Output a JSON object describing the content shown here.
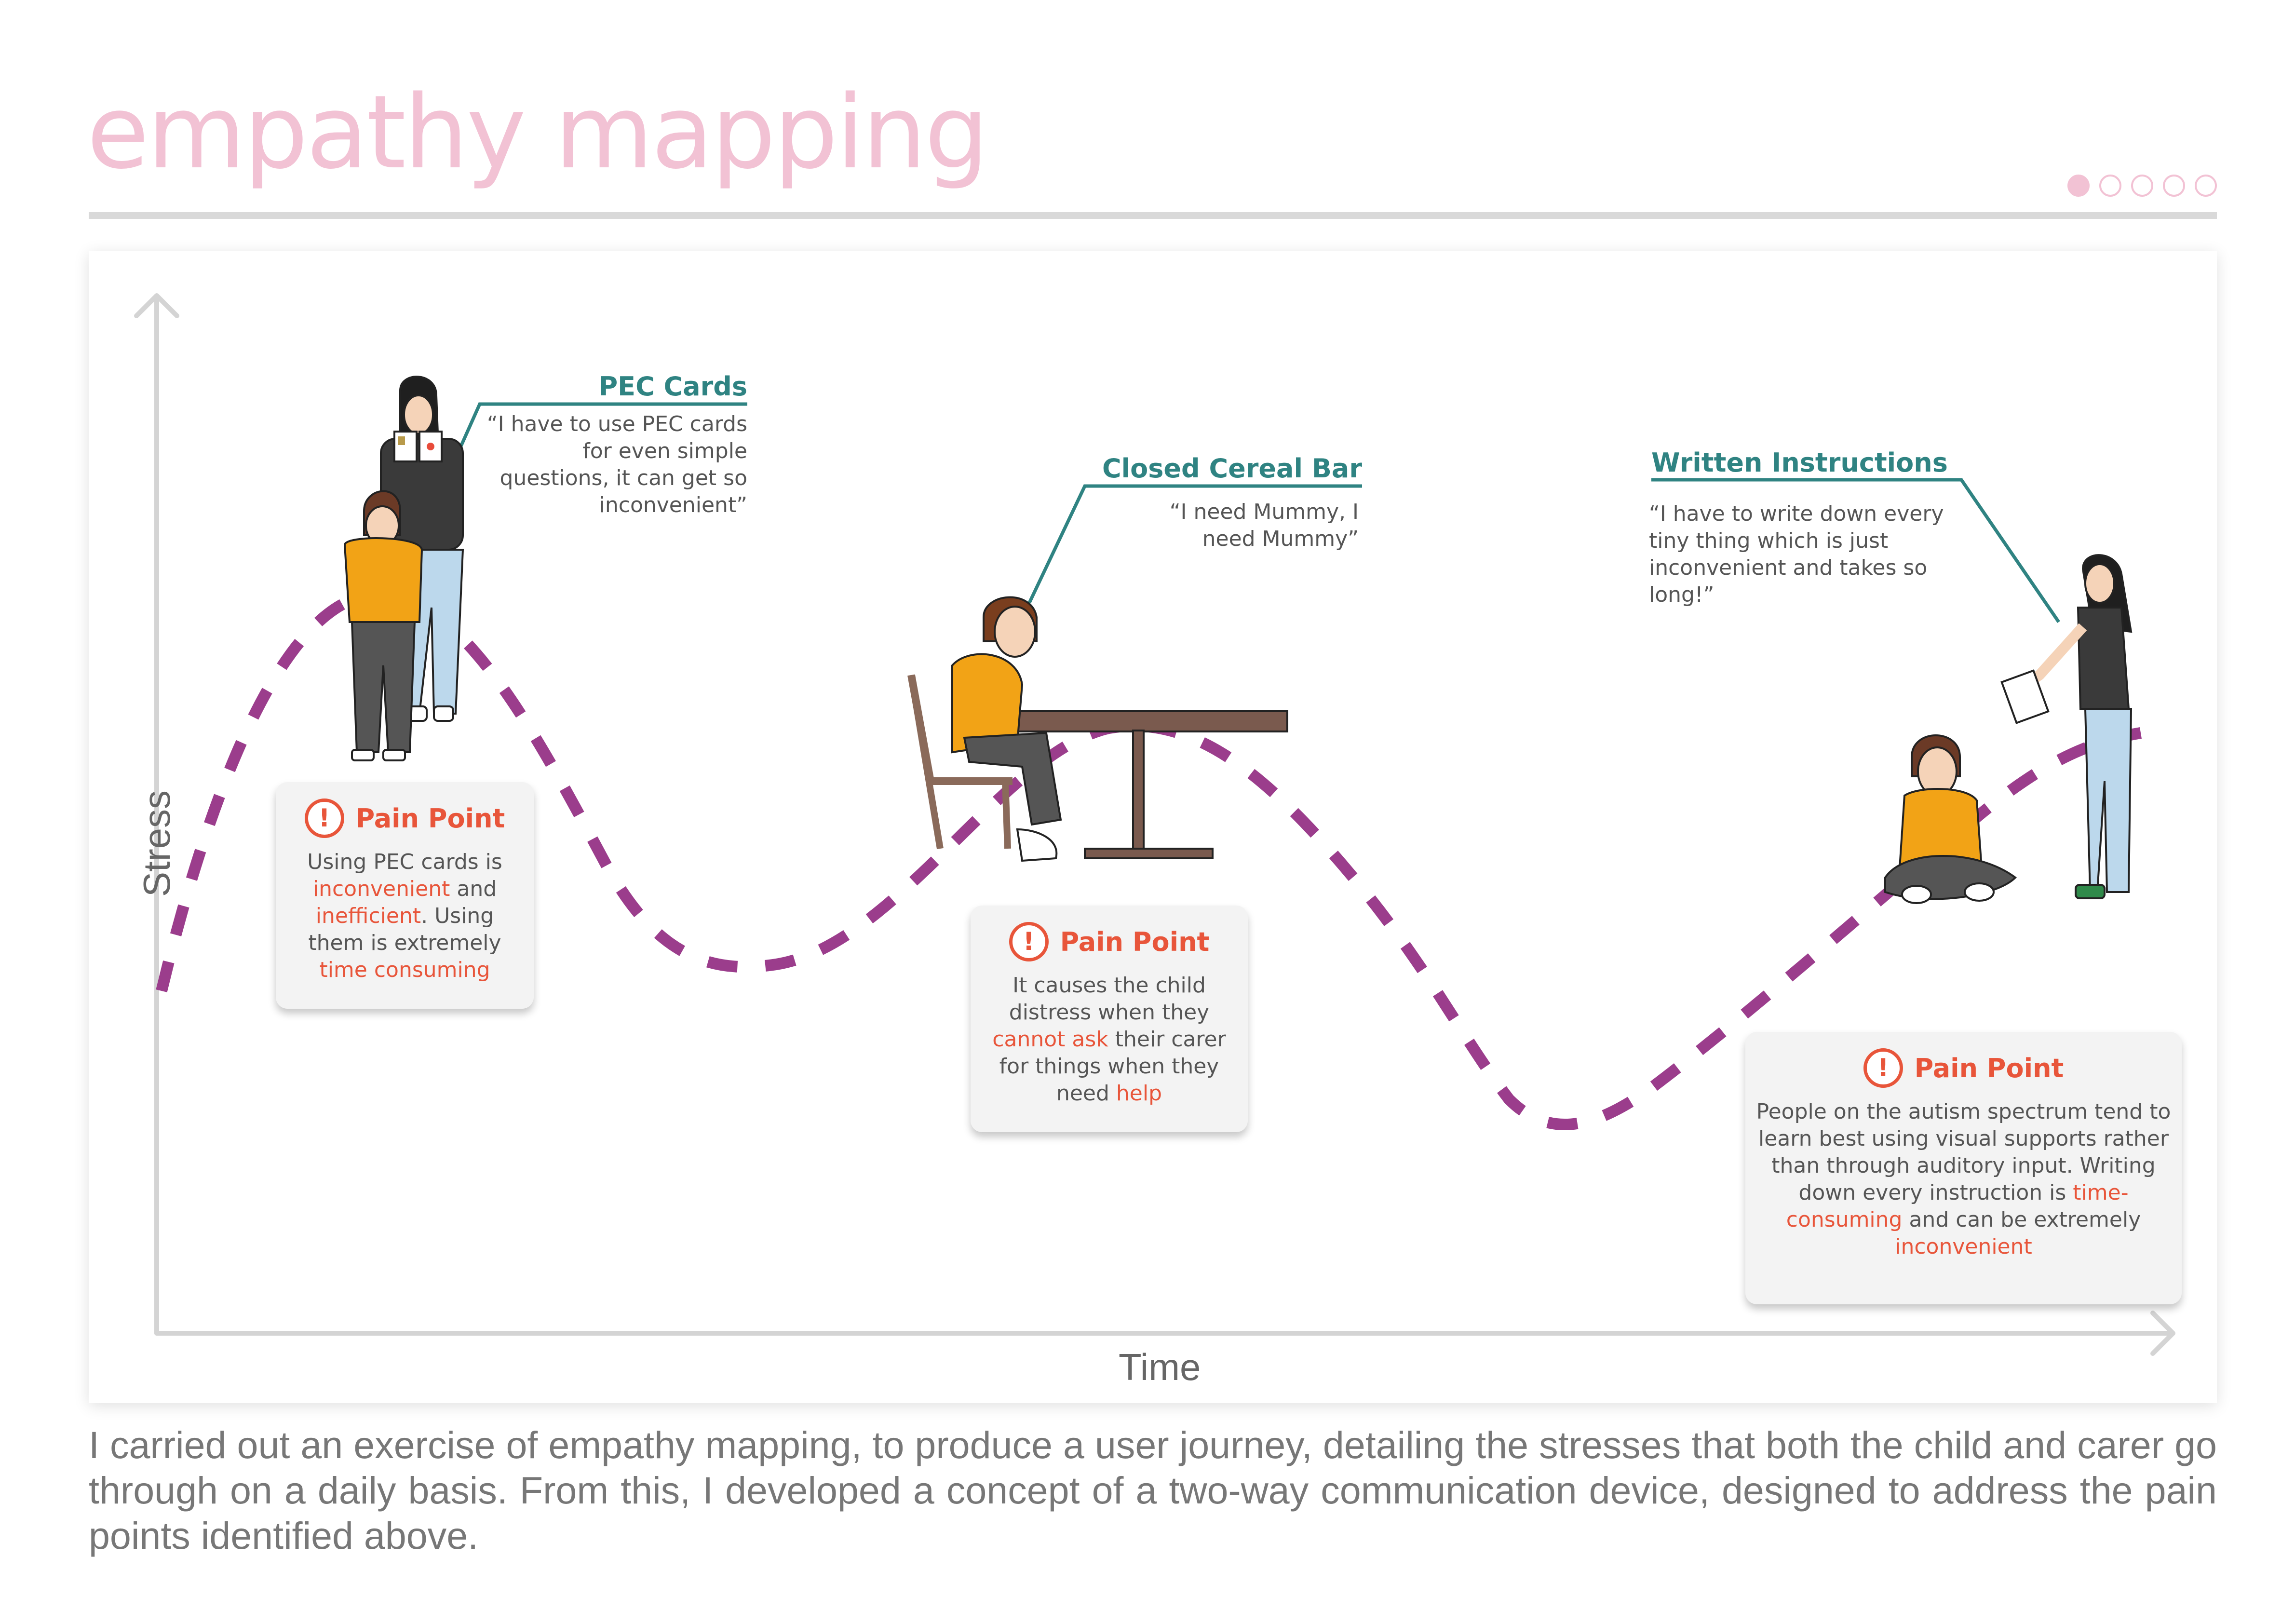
{
  "page": {
    "title": "empathy mapping",
    "pagination": {
      "total": 5,
      "active": 1
    },
    "accent_color": "#f2c2d4"
  },
  "axes": {
    "y_label": "Stress",
    "x_label": "Time"
  },
  "curve_color": "#9b3d8c",
  "callouts": [
    {
      "title": "PEC Cards",
      "quote": "“I have to use PEC cards for even simple questions, it can get so inconvenient”"
    },
    {
      "title": "Closed Cereal Bar",
      "quote": "“I need Mummy, I need Mummy”"
    },
    {
      "title": "Written Instructions",
      "quote": "“I have to write down every tiny thing which is just inconvenient and takes so long!”"
    }
  ],
  "pain_points": [
    {
      "title": "Pain Point",
      "parts": [
        {
          "t": "Using PEC cards is ",
          "hl": false
        },
        {
          "t": "inconvenient",
          "hl": true
        },
        {
          "t": " and ",
          "hl": false
        },
        {
          "t": "inefficient",
          "hl": true
        },
        {
          "t": ". Using them is extremely ",
          "hl": false
        },
        {
          "t": "time consuming",
          "hl": true
        }
      ]
    },
    {
      "title": "Pain Point",
      "parts": [
        {
          "t": "It causes the child distress when they ",
          "hl": false
        },
        {
          "t": "cannot ask",
          "hl": true
        },
        {
          "t": " their carer for things when they need ",
          "hl": false
        },
        {
          "t": "help",
          "hl": true
        }
      ]
    },
    {
      "title": "Pain Point",
      "parts": [
        {
          "t": "People on the autism spectrum tend to learn best using visual supports rather than through auditory input. Writing down every instruction is ",
          "hl": false
        },
        {
          "t": "time-consuming",
          "hl": true
        },
        {
          "t": " and can be extremely ",
          "hl": false
        },
        {
          "t": "inconvenient",
          "hl": true
        }
      ]
    }
  ],
  "caption": "I carried out an exercise of empathy mapping, to produce a user journey, detailing the stresses that both the child and carer go through on a daily basis. From this, I developed a concept of a two-way communication device, designed to address the pain points identified above."
}
